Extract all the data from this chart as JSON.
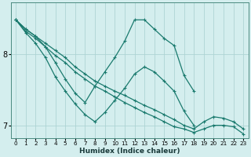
{
  "xlabel": "Humidex (Indice chaleur)",
  "bg_color": "#d4eeee",
  "line_color": "#1a7a6e",
  "grid_color": "#aed4d4",
  "xlim": [
    -0.5,
    23.5
  ],
  "ylim": [
    6.82,
    8.72
  ],
  "yticks": [
    7,
    8
  ],
  "xticks": [
    0,
    1,
    2,
    3,
    4,
    5,
    6,
    7,
    8,
    9,
    10,
    11,
    12,
    13,
    14,
    15,
    16,
    17,
    18,
    19,
    20,
    21,
    22,
    23
  ],
  "series": [
    {
      "x": [
        0,
        1,
        2,
        3,
        4,
        5,
        6,
        7,
        8,
        9,
        10,
        11,
        12,
        13,
        14,
        15,
        16,
        17,
        18,
        19,
        20,
        21,
        22,
        23
      ],
      "y": [
        8.48,
        8.35,
        8.25,
        8.1,
        7.88,
        7.65,
        7.45,
        7.32,
        7.55,
        7.75,
        7.95,
        8.18,
        8.48,
        8.48,
        8.35,
        8.22,
        8.12,
        7.7,
        7.48,
        null,
        null,
        null,
        null,
        null
      ]
    },
    {
      "x": [
        0,
        1,
        2,
        3,
        4,
        5,
        6,
        7,
        8,
        9,
        10,
        11,
        12,
        13,
        14,
        15,
        16,
        17,
        18,
        19,
        20,
        21,
        22,
        23
      ],
      "y": [
        8.48,
        8.3,
        8.15,
        7.95,
        7.68,
        7.48,
        7.3,
        7.15,
        7.05,
        7.18,
        7.35,
        7.52,
        7.72,
        7.82,
        7.75,
        7.62,
        7.48,
        7.2,
        7.0,
        null,
        null,
        null,
        null,
        null
      ]
    },
    {
      "x": [
        0,
        1,
        2,
        3,
        4,
        5,
        6,
        7,
        8,
        9,
        10,
        11,
        12,
        13,
        14,
        15,
        16,
        17,
        18,
        19,
        20,
        21,
        22,
        23
      ],
      "y": [
        8.48,
        8.35,
        8.25,
        8.15,
        8.05,
        7.95,
        7.82,
        7.72,
        7.62,
        7.55,
        7.48,
        7.42,
        7.35,
        7.28,
        7.22,
        7.15,
        7.08,
        7.0,
        6.95,
        7.05,
        7.12,
        7.1,
        7.05,
        6.95
      ]
    },
    {
      "x": [
        0,
        1,
        2,
        3,
        4,
        5,
        6,
        7,
        8,
        9,
        10,
        11,
        12,
        13,
        14,
        15,
        16,
        17,
        18,
        19,
        20,
        21,
        22,
        23
      ],
      "y": [
        8.48,
        8.32,
        8.22,
        8.1,
        7.98,
        7.88,
        7.75,
        7.65,
        7.55,
        7.48,
        7.4,
        7.32,
        7.25,
        7.18,
        7.12,
        7.05,
        6.98,
        6.95,
        6.9,
        6.95,
        7.0,
        7.0,
        6.98,
        6.88
      ]
    }
  ]
}
